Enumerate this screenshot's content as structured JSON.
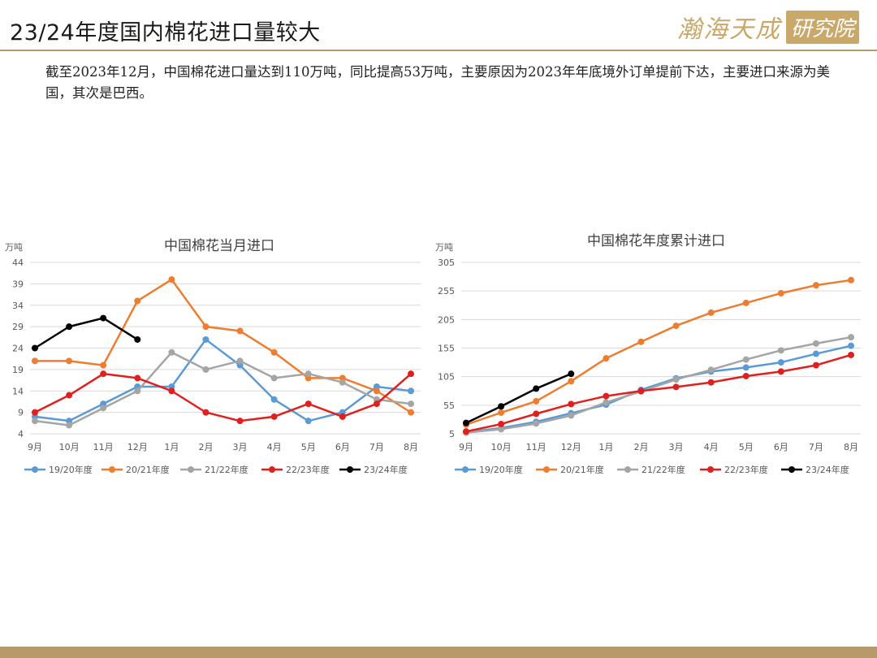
{
  "page": {
    "title": "23/24年度国内棉花进口量较大",
    "logo_main": "瀚海天成",
    "logo_box": "研究院",
    "description": "截至2023年12月，中国棉花进口量达到110万吨，同比提高53万吨，主要原因为2023年年底境外订单提前下达，主要进口来源为美国，其次是巴西。"
  },
  "colors": {
    "s1920": "#5b9bd5",
    "s2021": "#ed7d31",
    "s2122": "#a5a5a5",
    "s2223": "#e0201f",
    "s2324": "#000000",
    "grid": "#d9d9d9",
    "axis_text": "#595959",
    "brand": "#c9a86a"
  },
  "chart_data": [
    {
      "type": "line",
      "title": "中国棉花当月进口",
      "ylabel": "万吨",
      "categories": [
        "9月",
        "10月",
        "11月",
        "12月",
        "1月",
        "2月",
        "3月",
        "4月",
        "5月",
        "6月",
        "7月",
        "8月"
      ],
      "yticks": [
        4,
        9,
        14,
        19,
        24,
        29,
        34,
        39,
        44
      ],
      "ylim": [
        4,
        44
      ],
      "grid": true,
      "legend_position": "bottom",
      "series": [
        {
          "name": "19/20年度",
          "color_key": "s1920",
          "values": [
            8,
            7,
            11,
            15,
            15,
            26,
            20,
            12,
            7,
            9,
            15,
            14
          ]
        },
        {
          "name": "20/21年度",
          "color_key": "s2021",
          "values": [
            21,
            21,
            20,
            35,
            40,
            29,
            28,
            23,
            17,
            17,
            14,
            9
          ]
        },
        {
          "name": "21/22年度",
          "color_key": "s2122",
          "values": [
            7,
            6,
            10,
            14,
            23,
            19,
            21,
            17,
            18,
            16,
            12,
            11
          ]
        },
        {
          "name": "22/23年度",
          "color_key": "s2223",
          "values": [
            9,
            13,
            18,
            17,
            14,
            9,
            7,
            8,
            11,
            8,
            11,
            18
          ]
        },
        {
          "name": "23/24年度",
          "color_key": "s2324",
          "values": [
            24,
            29,
            31,
            26,
            null,
            null,
            null,
            null,
            null,
            null,
            null,
            null
          ]
        }
      ]
    },
    {
      "type": "line",
      "title": "中国棉花年度累计进口",
      "ylabel": "万吨",
      "categories": [
        "9月",
        "10月",
        "11月",
        "12月",
        "1月",
        "2月",
        "3月",
        "4月",
        "5月",
        "6月",
        "7月",
        "8月"
      ],
      "yticks": [
        5,
        55,
        105,
        155,
        205,
        255,
        305
      ],
      "ylim": [
        5,
        305
      ],
      "grid": true,
      "legend_position": "bottom",
      "series": [
        {
          "name": "19/20年度",
          "color_key": "s1920",
          "values": [
            8,
            15,
            26,
            41,
            56,
            82,
            102,
            114,
            121,
            130,
            145,
            159
          ]
        },
        {
          "name": "20/21年度",
          "color_key": "s2021",
          "values": [
            21,
            42,
            62,
            97,
            137,
            166,
            194,
            217,
            234,
            251,
            265,
            274
          ]
        },
        {
          "name": "21/22年度",
          "color_key": "s2122",
          "values": [
            7,
            13,
            23,
            37,
            60,
            79,
            100,
            117,
            135,
            151,
            163,
            174
          ]
        },
        {
          "name": "22/23年度",
          "color_key": "s2223",
          "values": [
            9,
            22,
            40,
            57,
            71,
            80,
            87,
            95,
            106,
            114,
            125,
            143
          ]
        },
        {
          "name": "23/24年度",
          "color_key": "s2324",
          "values": [
            24,
            53,
            84,
            110,
            null,
            null,
            null,
            null,
            null,
            null,
            null,
            null
          ]
        }
      ]
    }
  ]
}
